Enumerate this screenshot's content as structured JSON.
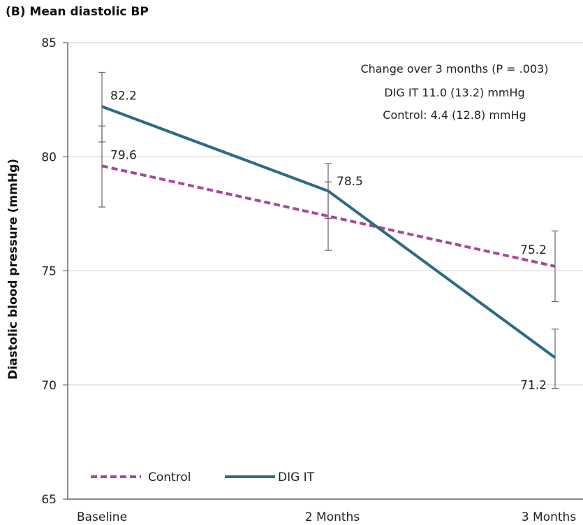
{
  "chart_data": {
    "type": "line",
    "title": "(B) Mean diastolic BP",
    "ylabel": "Diastolic blood pressure (mmHg)",
    "xlabel": "",
    "categories": [
      "Baseline",
      "2 Months",
      "3 Months"
    ],
    "ylim": [
      65,
      85
    ],
    "yticks": [
      65,
      70,
      75,
      80,
      85
    ],
    "grid": "horizontal",
    "legend_position": "bottom-left",
    "series": [
      {
        "name": "Control",
        "style": "dashed",
        "color": "#a8479b",
        "values": [
          79.6,
          77.4,
          75.2
        ],
        "labels": [
          "79.6",
          "",
          "75.2"
        ],
        "error_low": [
          77.8,
          75.9,
          73.65
        ],
        "error_high": [
          81.35,
          78.9,
          76.75
        ]
      },
      {
        "name": "DIG IT",
        "style": "solid",
        "color": "#2d6a85",
        "values": [
          82.2,
          78.5,
          71.2
        ],
        "labels": [
          "82.2",
          "78.5",
          "71.2"
        ],
        "error_low": [
          80.65,
          77.3,
          69.85
        ],
        "error_high": [
          83.7,
          79.7,
          72.45
        ]
      }
    ],
    "annotation": [
      "Change over 3 months (P = .003)",
      "DIG IT 11.0 (13.2) mmHg",
      "Control: 4.4 (12.8) mmHg"
    ],
    "colors": {
      "grid": "#cccccc",
      "axis": "#444444",
      "errorbar": "#666666"
    }
  }
}
